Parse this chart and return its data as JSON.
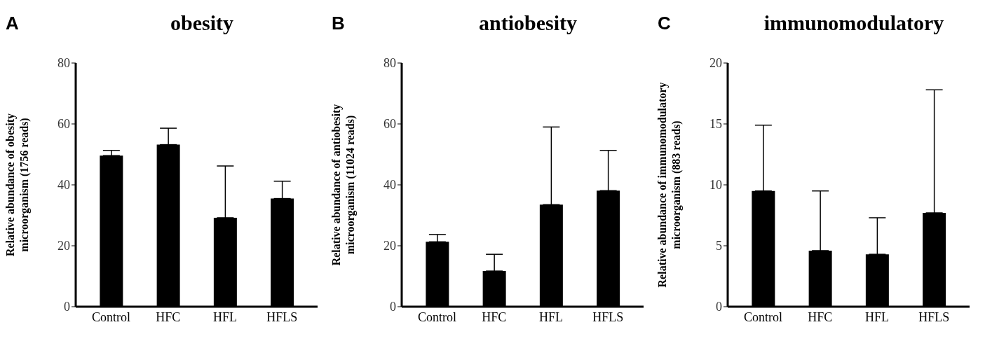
{
  "chart_data": [
    {
      "type": "bar",
      "title": "obesity",
      "annotations": [
        "A"
      ],
      "ylabel": "Relative abundance of obesity microorganism (1756 reads)",
      "categories": [
        "Control",
        "HFC",
        "HFL",
        "HFLS"
      ],
      "values": [
        49.6,
        53.2,
        29.2,
        35.5
      ],
      "errors": [
        [
          49.6,
          51.3
        ],
        [
          53.2,
          58.6
        ],
        [
          29.2,
          46.2
        ],
        [
          35.5,
          41.2
        ]
      ],
      "color": "#000000",
      "ylim": [
        0,
        80
      ],
      "yticks": [
        0,
        20,
        40,
        60,
        80
      ],
      "grid": false,
      "legend": false
    },
    {
      "type": "bar",
      "title": "antiobesity",
      "annotations": [
        "B"
      ],
      "ylabel": "Relative abundance of antiobesity microorganism (11024 reads)",
      "categories": [
        "Control",
        "HFC",
        "HFL",
        "HFLS"
      ],
      "values": [
        21.3,
        11.7,
        33.5,
        38.1
      ],
      "errors": [
        [
          21.3,
          23.7
        ],
        [
          11.7,
          17.2
        ],
        [
          33.5,
          59.0
        ],
        [
          38.1,
          51.3
        ]
      ],
      "color": "#000000",
      "ylim": [
        0,
        80
      ],
      "yticks": [
        0,
        20,
        40,
        60,
        80
      ],
      "grid": false,
      "legend": false
    },
    {
      "type": "bar",
      "title": "immunomodulatory",
      "annotations": [
        "C"
      ],
      "ylabel": "Relative abundance of immunomodulatory microorganism (883 reads)",
      "categories": [
        "Control",
        "HFC",
        "HFL",
        "HFLS"
      ],
      "values": [
        9.5,
        4.6,
        4.3,
        7.7
      ],
      "errors": [
        [
          9.5,
          14.9
        ],
        [
          4.6,
          9.5
        ],
        [
          4.3,
          7.3
        ],
        [
          7.7,
          17.8
        ]
      ],
      "color": "#000000",
      "ylim": [
        0,
        20
      ],
      "yticks": [
        0,
        5,
        10,
        15,
        20
      ],
      "grid": false,
      "legend": false
    }
  ]
}
